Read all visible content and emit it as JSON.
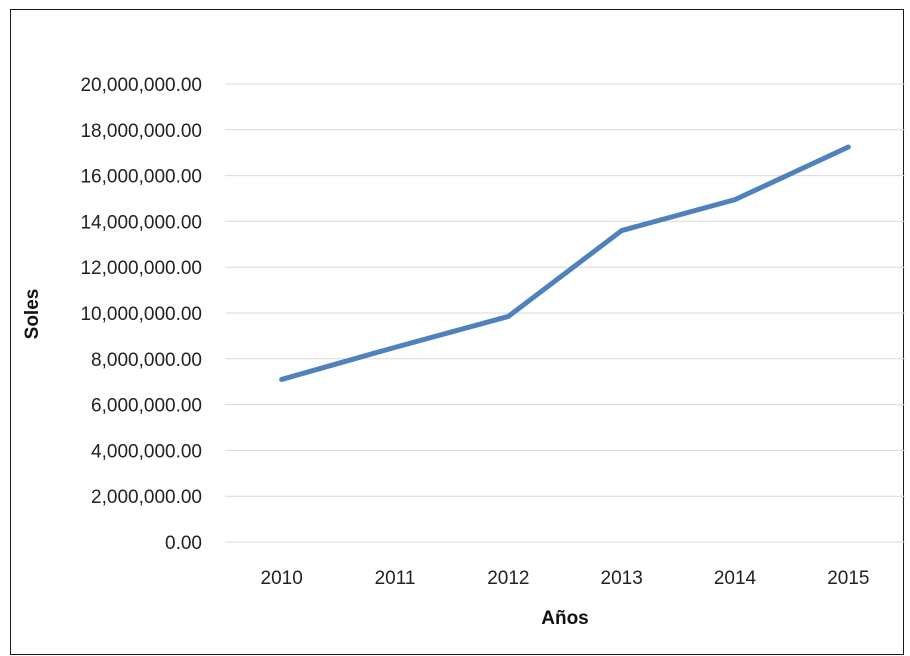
{
  "chart_data": {
    "type": "line",
    "title": "",
    "xlabel": "Años",
    "ylabel": "Soles",
    "categories": [
      "2010",
      "2011",
      "2012",
      "2013",
      "2014",
      "2015"
    ],
    "series": [
      {
        "values": [
          7100000,
          8500000,
          9850000,
          13600000,
          14950000,
          17250000
        ],
        "color": "#4f81bd"
      }
    ],
    "ylim": [
      0,
      20000000
    ],
    "y_ticks": [
      "0.00",
      "2,000,000.00",
      "4,000,000.00",
      "6,000,000.00",
      "8,000,000.00",
      "10,000,000.00",
      "12,000,000.00",
      "14,000,000.00",
      "16,000,000.00",
      "18,000,000.00",
      "20,000,000.00"
    ],
    "grid": true,
    "legend": "none",
    "colors": {
      "gridline": "#d9d9d9",
      "frame": "#1a1a1a",
      "line": "#4f81bd"
    }
  }
}
